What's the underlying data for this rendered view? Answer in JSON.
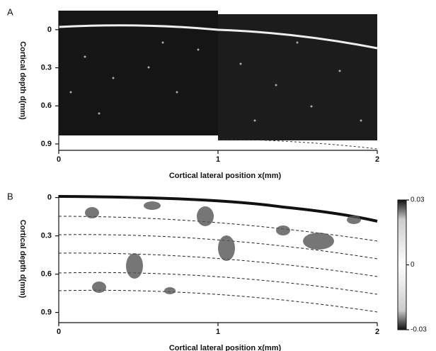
{
  "chart_data": [
    {
      "type": "image",
      "panel_label": "A",
      "xlabel": "Cortical lateral position   x(mm)",
      "ylabel": "Cortical depth d(mm)",
      "xlim": [
        0,
        2
      ],
      "xticks": [
        0,
        1,
        2
      ],
      "ylim": [
        -0.15,
        0.95
      ],
      "yticks": [
        0,
        0.3,
        0.6,
        0.9
      ],
      "y_inverted": true
    },
    {
      "type": "contour",
      "panel_label": "B",
      "xlabel": "Cortical lateral position   x(mm)",
      "ylabel": "Cortical depth d(mm)",
      "xlim": [
        0,
        2
      ],
      "xticks": [
        0,
        1,
        2
      ],
      "ylim": [
        -0.02,
        0.98
      ],
      "yticks": [
        0,
        0.3,
        0.6,
        0.9
      ],
      "y_inverted": true,
      "clim": [
        -0.03,
        0.03
      ],
      "cticks": [
        0.03,
        0,
        -0.03
      ]
    }
  ]
}
